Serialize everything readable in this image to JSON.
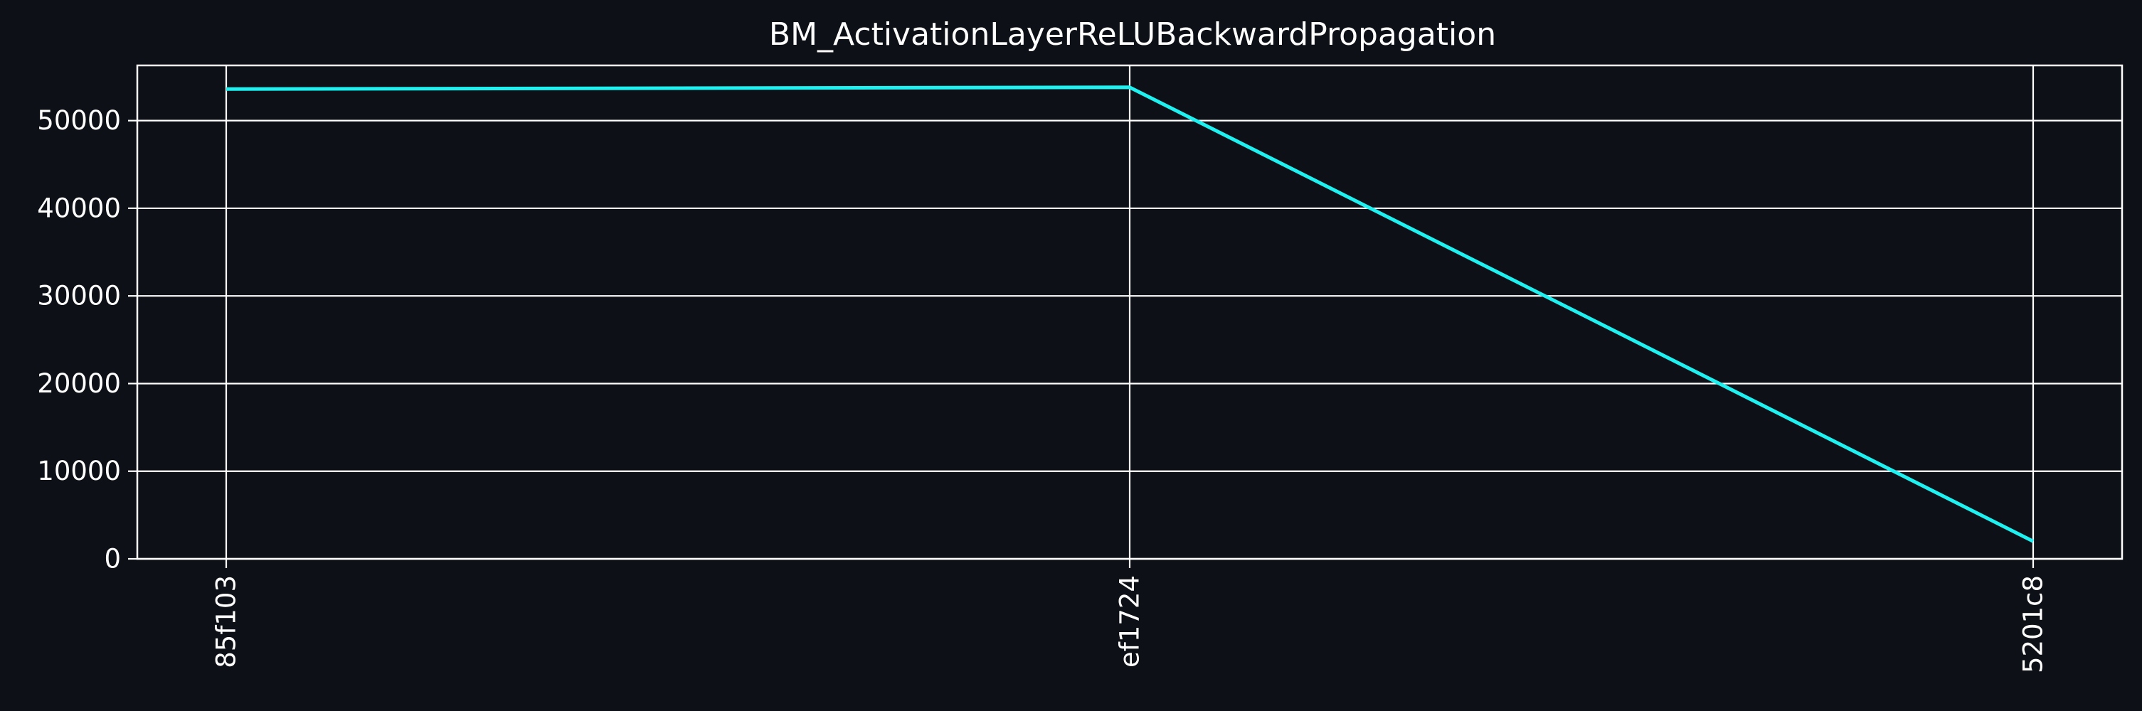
{
  "chart_data": {
    "type": "line",
    "title": "BM_ActivationLayerReLUBackwardPropagation",
    "xlabel": "",
    "ylabel": "",
    "categories": [
      "85f103",
      "ef1724",
      "5201c8"
    ],
    "series": [
      {
        "values": [
          53600,
          53800,
          2000
        ]
      }
    ],
    "ylim": [
      0,
      56300
    ],
    "yticks": [
      0,
      10000,
      20000,
      30000,
      40000,
      50000
    ],
    "grid": true,
    "x_tick_rotation": "vertical",
    "colors": {
      "background": "#0d1117",
      "text": "#ffffff",
      "axes": "#ffffff",
      "grid": "#ffffff",
      "line": "#1ff0f0"
    }
  }
}
